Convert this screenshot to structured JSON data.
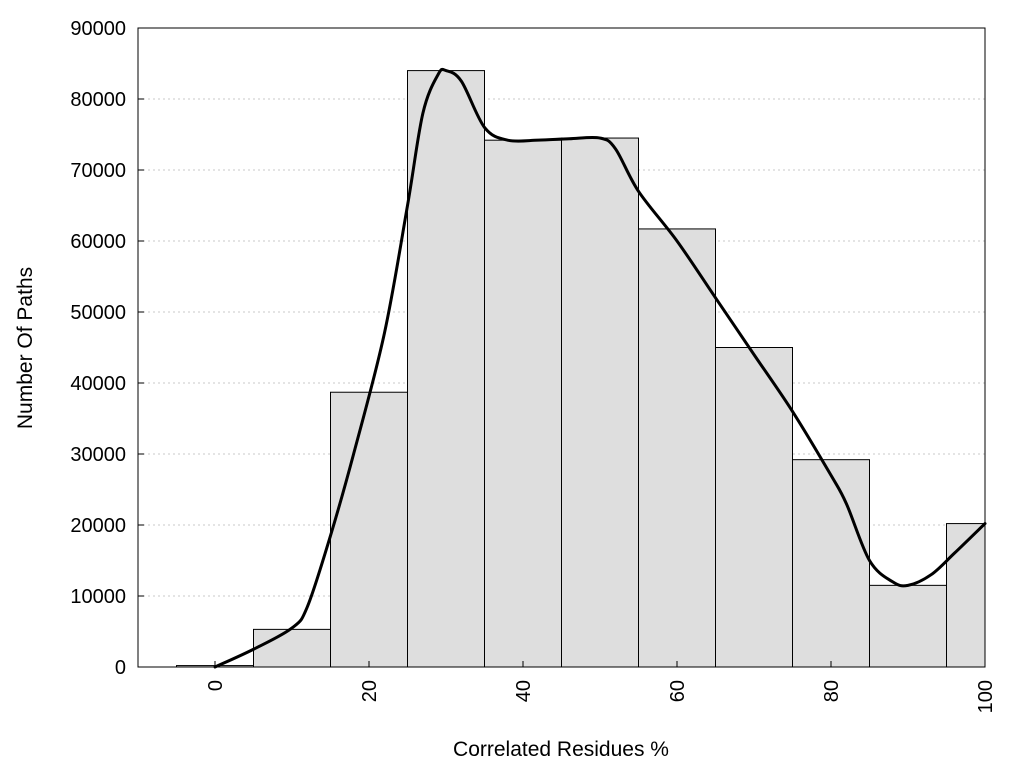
{
  "chart_data": {
    "type": "bar",
    "xlabel": "Correlated Residues %",
    "ylabel": "Number Of Paths",
    "xlim": [
      -10,
      100
    ],
    "ylim": [
      0,
      90000
    ],
    "x_ticks": [
      0,
      20,
      40,
      60,
      80,
      100
    ],
    "y_ticks": [
      0,
      10000,
      20000,
      30000,
      40000,
      50000,
      60000,
      70000,
      80000,
      90000
    ],
    "grid": "horizontal dotted",
    "bin_width": 10,
    "bins": [
      {
        "center": 0,
        "value": 200
      },
      {
        "center": 10,
        "value": 5300
      },
      {
        "center": 20,
        "value": 38700
      },
      {
        "center": 30,
        "value": 84000
      },
      {
        "center": 40,
        "value": 74200
      },
      {
        "center": 50,
        "value": 74500
      },
      {
        "center": 60,
        "value": 61700
      },
      {
        "center": 70,
        "value": 45000
      },
      {
        "center": 80,
        "value": 29200
      },
      {
        "center": 90,
        "value": 11500
      },
      {
        "center": 100,
        "value": 20200
      }
    ],
    "density_curve": {
      "x": [
        0,
        5,
        10,
        12,
        15,
        18,
        22,
        25,
        27,
        29,
        30,
        32,
        35,
        38,
        42,
        46,
        50,
        52,
        55,
        60,
        65,
        70,
        75,
        80,
        82,
        85,
        88,
        90,
        93,
        96,
        100
      ],
      "y": [
        0,
        2500,
        5500,
        8500,
        18500,
        30000,
        47000,
        65000,
        78000,
        83500,
        84000,
        82500,
        76000,
        74200,
        74200,
        74400,
        74500,
        73000,
        67000,
        60000,
        52000,
        44000,
        36000,
        27000,
        23000,
        15000,
        12000,
        11500,
        13000,
        16000,
        20200
      ]
    }
  }
}
